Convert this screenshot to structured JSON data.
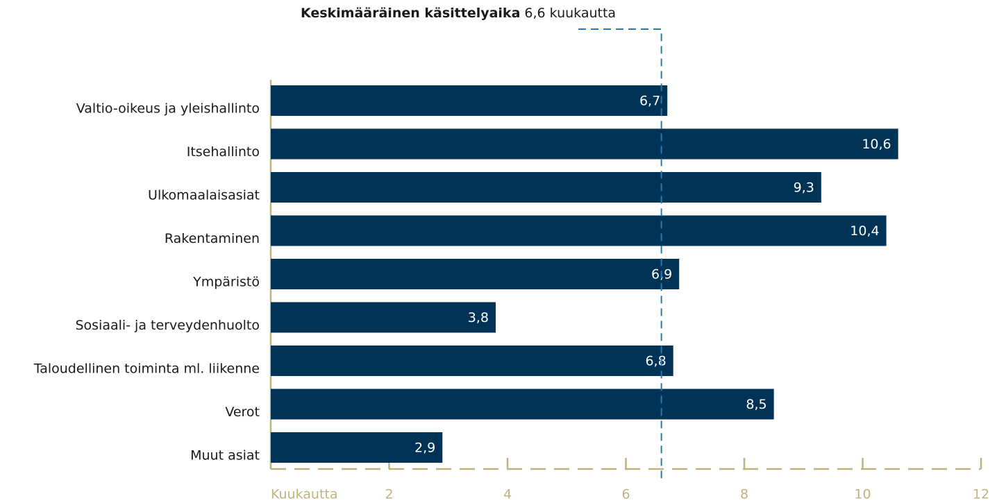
{
  "chart_data": {
    "type": "bar",
    "orientation": "horizontal",
    "categories": [
      "Valtio-oikeus ja yleishallinto",
      "Itsehallinto",
      "Ulkomaalaisasiat",
      "Rakentaminen",
      "Ympäristö",
      "Sosiaali- ja terveydenhuolto",
      "Taloudellinen toiminta ml. liikenne",
      "Verot",
      "Muut asiat"
    ],
    "values": [
      6.7,
      10.6,
      9.3,
      10.4,
      6.9,
      3.8,
      6.8,
      8.5,
      2.9
    ],
    "value_labels": [
      "6,7",
      "10,6",
      "9,3",
      "10,4",
      "6,9",
      "3,8",
      "6,8",
      "8,5",
      "2,9"
    ],
    "color": "#003355",
    "xlim": [
      0,
      12
    ],
    "xticks": [
      {
        "value": 0,
        "label": "Kuukautta"
      },
      2,
      4,
      6,
      8,
      10,
      12
    ],
    "reference_line": {
      "label": "Keskimääräinen käsittelyaika",
      "text": "6,6 kuukautta",
      "value": 6.6,
      "color": "#2a7ab0"
    },
    "axis_color": "#c2b282"
  }
}
